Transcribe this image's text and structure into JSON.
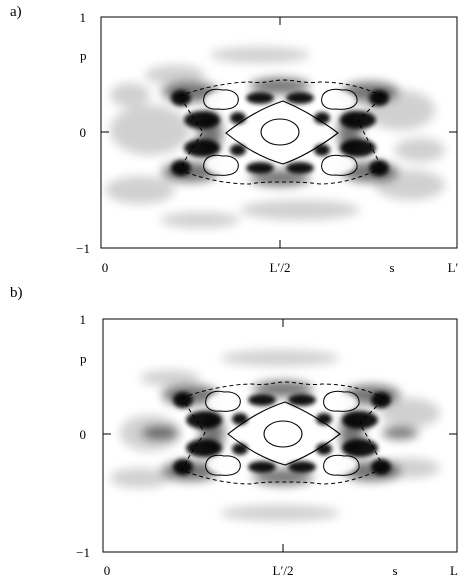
{
  "panels": [
    {
      "label": "a)",
      "axis_labels": {
        "y_symbol": "p",
        "x_symbol": "s"
      },
      "y_ticks": [
        "1",
        "0",
        "−1"
      ],
      "x_ticks": [
        "0",
        "L′/2",
        "L′"
      ]
    },
    {
      "label": "b)",
      "axis_labels": {
        "y_symbol": "p",
        "x_symbol": "s"
      },
      "y_ticks": [
        "1",
        "0",
        "−1"
      ],
      "x_ticks": [
        "0",
        "L′/2",
        "L"
      ]
    }
  ],
  "chart_data": [
    {
      "type": "heatmap",
      "title": "",
      "xlabel": "s",
      "ylabel": "p",
      "xlim": [
        0,
        1
      ],
      "ylim": [
        -1,
        1
      ],
      "x_tick_labels": [
        "0",
        "L′/2",
        "L′"
      ],
      "y_tick_labels": [
        "-1",
        "0",
        "1"
      ],
      "grid": false,
      "colormap": "grayscale (white = low, black = high)",
      "overlays": [
        {
          "kind": "solid closed curve",
          "shape": "diamond separatrix",
          "center": [
            0.5,
            0.0
          ],
          "half_width_s": 0.16,
          "half_height_p": 0.26
        },
        {
          "kind": "solid closed curve",
          "shape": "central ellipse",
          "center": [
            0.5,
            0.0
          ]
        },
        {
          "kind": "solid closed curve",
          "shape": "island",
          "center": [
            0.34,
            0.28
          ]
        },
        {
          "kind": "solid closed curve",
          "shape": "island",
          "center": [
            0.66,
            0.28
          ]
        },
        {
          "kind": "solid closed curve",
          "shape": "island",
          "center": [
            0.34,
            -0.28
          ]
        },
        {
          "kind": "solid closed curve",
          "shape": "island",
          "center": [
            0.66,
            -0.28
          ]
        },
        {
          "kind": "dashed closed curve",
          "shape": "outer boundary",
          "s_range": [
            0.2,
            0.8
          ],
          "p_range": [
            -0.45,
            0.45
          ]
        }
      ]
    },
    {
      "type": "heatmap",
      "title": "",
      "xlabel": "s",
      "ylabel": "p",
      "xlim": [
        0,
        1
      ],
      "ylim": [
        -1,
        1
      ],
      "x_tick_labels": [
        "0",
        "L′/2",
        "L"
      ],
      "y_tick_labels": [
        "-1",
        "0",
        "1"
      ],
      "grid": false,
      "colormap": "grayscale (white = low, black = high)",
      "overlays": [
        {
          "kind": "solid closed curve",
          "shape": "diamond separatrix",
          "center": [
            0.5,
            0.0
          ],
          "half_width_s": 0.16,
          "half_height_p": 0.26
        },
        {
          "kind": "solid closed curve",
          "shape": "central ellipse",
          "center": [
            0.5,
            0.0
          ]
        },
        {
          "kind": "solid closed curve",
          "shape": "island",
          "center": [
            0.34,
            0.28
          ]
        },
        {
          "kind": "solid closed curve",
          "shape": "island",
          "center": [
            0.66,
            0.28
          ]
        },
        {
          "kind": "solid closed curve",
          "shape": "island",
          "center": [
            0.34,
            -0.28
          ]
        },
        {
          "kind": "solid closed curve",
          "shape": "island",
          "center": [
            0.66,
            -0.28
          ]
        },
        {
          "kind": "dashed closed curve",
          "shape": "outer boundary",
          "s_range": [
            0.2,
            0.8
          ],
          "p_range": [
            -0.45,
            0.45
          ]
        }
      ]
    }
  ]
}
